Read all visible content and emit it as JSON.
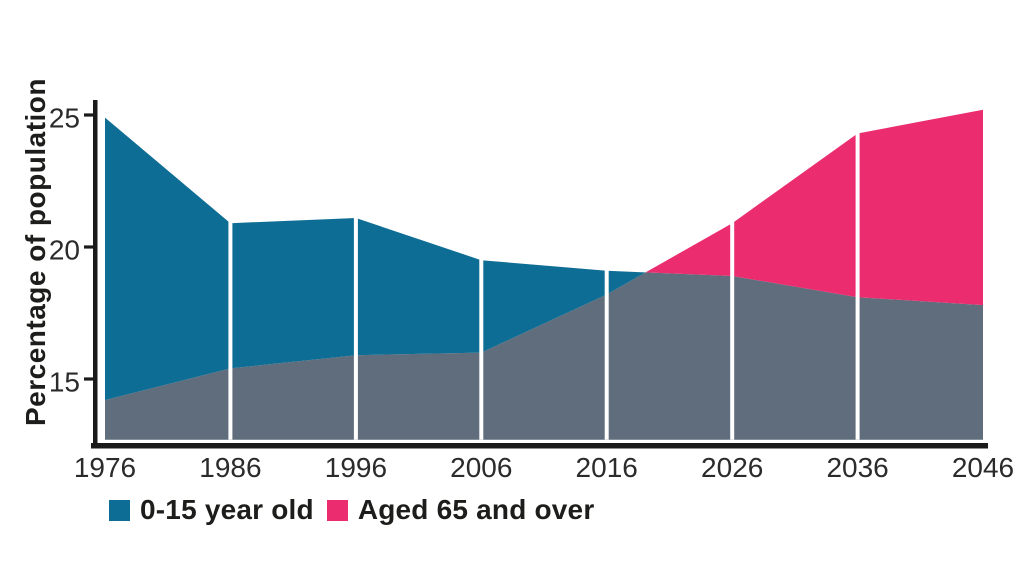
{
  "chart_data": {
    "type": "area",
    "title": "",
    "xlabel": "",
    "ylabel": "Percentage of population",
    "categories": [
      1976,
      1986,
      1996,
      2006,
      2016,
      2026,
      2036,
      2046
    ],
    "series": [
      {
        "name": "0-15 year old",
        "color": "#0e6d94",
        "values": [
          24.9,
          20.9,
          21.1,
          19.5,
          19.1,
          18.9,
          18.1,
          17.8
        ]
      },
      {
        "name": "Aged 65 and over",
        "color": "#eb2d6f",
        "values": [
          14.2,
          15.4,
          15.9,
          16.0,
          18.2,
          20.9,
          24.3,
          25.2
        ]
      }
    ],
    "overlap_fill_color": "#5f6d7c",
    "axis_color": "#1a1a1a",
    "y_ticks": [
      25,
      20,
      15
    ],
    "ylim": [
      12.7,
      25.6
    ],
    "grid": "white vertical separator lines at each decade",
    "legend_position": "bottom-left",
    "fill_rule": "region between the two lines takes the color of the higher series; overlap below both lines is gray"
  }
}
